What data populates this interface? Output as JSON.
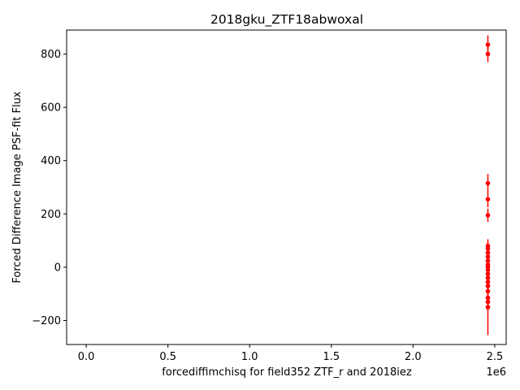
{
  "chart_data": {
    "type": "scatter",
    "title": "2018gku_ZTF18abwoxal",
    "xlabel": "forcediffimchisq for field352 ZTF_r and 2018iez",
    "ylabel": "Forced Difference Image PSF-fit Flux",
    "x_offset_label": "1e6",
    "xlim": [
      -120000,
      2570000
    ],
    "ylim": [
      -290,
      890
    ],
    "x_ticks": [
      0,
      500000,
      1000000,
      1500000,
      2000000,
      2500000
    ],
    "x_tick_labels": [
      "0.0",
      "0.5",
      "1.0",
      "1.5",
      "2.0",
      "2.5"
    ],
    "y_ticks": [
      -200,
      0,
      200,
      400,
      600,
      800
    ],
    "y_tick_labels": [
      "−200",
      "0",
      "200",
      "400",
      "600",
      "800"
    ],
    "grid": false,
    "marker_color": "#ff0000",
    "series": [
      {
        "points": [
          {
            "x": 2458000,
            "y": 835,
            "err": 35
          },
          {
            "x": 2458000,
            "y": 800,
            "err": 30
          },
          {
            "x": 2458000,
            "y": 315,
            "err": 35
          },
          {
            "x": 2458000,
            "y": 255,
            "err": 30
          },
          {
            "x": 2458000,
            "y": 195,
            "err": 25
          },
          {
            "x": 2458000,
            "y": 80,
            "err": 25
          },
          {
            "x": 2458000,
            "y": 70,
            "err": 25
          },
          {
            "x": 2458000,
            "y": 55,
            "err": 25
          },
          {
            "x": 2458000,
            "y": 40,
            "err": 25
          },
          {
            "x": 2458000,
            "y": 25,
            "err": 25
          },
          {
            "x": 2458000,
            "y": 10,
            "err": 25
          },
          {
            "x": 2458000,
            "y": 0,
            "err": 25
          },
          {
            "x": 2458000,
            "y": -10,
            "err": 25
          },
          {
            "x": 2458000,
            "y": -25,
            "err": 25
          },
          {
            "x": 2458000,
            "y": -40,
            "err": 25
          },
          {
            "x": 2458000,
            "y": -55,
            "err": 25
          },
          {
            "x": 2458000,
            "y": -70,
            "err": 30
          },
          {
            "x": 2458000,
            "y": -90,
            "err": 30
          },
          {
            "x": 2458000,
            "y": -115,
            "err": 35
          },
          {
            "x": 2458000,
            "y": -130,
            "err": 35
          },
          {
            "x": 2458000,
            "y": -150,
            "err": 105
          }
        ]
      }
    ]
  }
}
